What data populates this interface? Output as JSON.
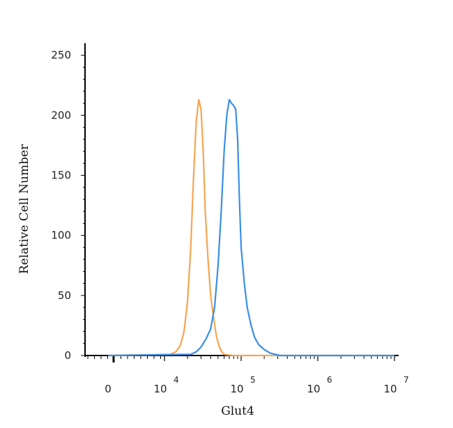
{
  "chart_data": {
    "type": "line",
    "title": "",
    "xlabel": "Glut4",
    "ylabel": "Relative Cell Number",
    "ylim": [
      0,
      260
    ],
    "yticks": [
      0,
      50,
      100,
      150,
      200,
      250
    ],
    "x_scale": "biexponential",
    "xticks": [
      {
        "base": "0",
        "exp": ""
      },
      {
        "base": "10",
        "exp": "4"
      },
      {
        "base": "10",
        "exp": "5"
      },
      {
        "base": "10",
        "exp": "6"
      },
      {
        "base": "10",
        "exp": "7"
      }
    ],
    "grid": false,
    "series": [
      {
        "color": "#f5a552",
        "x": [
          1.0,
          12000,
          14000,
          16000,
          18000,
          20000,
          22000,
          24000,
          26000,
          28000,
          30000,
          32000,
          34000,
          37000,
          40000,
          44000,
          48000,
          52000,
          56000,
          60000,
          66000,
          80000,
          10000000
        ],
        "y": [
          0,
          1,
          3,
          8,
          20,
          45,
          90,
          150,
          195,
          213,
          205,
          170,
          120,
          80,
          50,
          30,
          15,
          7,
          3,
          1,
          0.5,
          0,
          0
        ]
      },
      {
        "color": "#3a8ee6",
        "x": [
          1.0,
          22000,
          26000,
          30000,
          35000,
          40000,
          45000,
          50000,
          55000,
          60000,
          65000,
          70000,
          75000,
          80000,
          85000,
          90000,
          95000,
          100000,
          110000,
          120000,
          135000,
          150000,
          170000,
          200000,
          240000,
          280000,
          320000,
          10000000
        ],
        "y": [
          0,
          1,
          3,
          7,
          14,
          22,
          40,
          75,
          120,
          170,
          200,
          213,
          210,
          208,
          205,
          180,
          130,
          90,
          60,
          40,
          25,
          15,
          9,
          5,
          2,
          1,
          0,
          0
        ]
      }
    ]
  }
}
